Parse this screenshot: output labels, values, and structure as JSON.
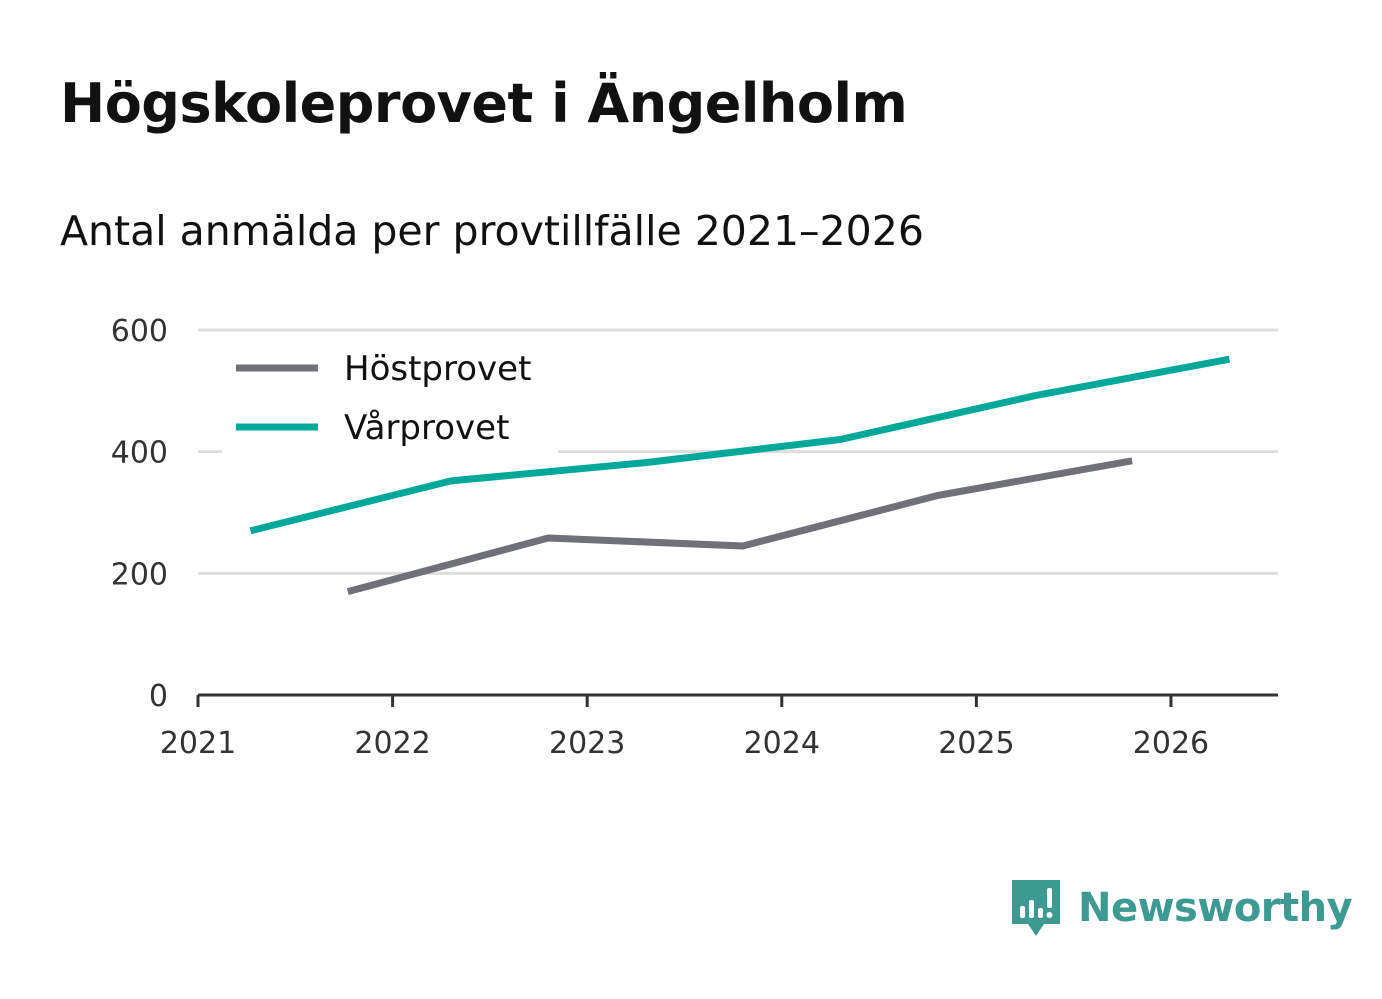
{
  "title": "Högskoleprovet i Ängelholm",
  "subtitle": "Antal anmälda per provtillfälle 2021–2026",
  "brand": {
    "name": "Newsworthy",
    "icon": "newsworthy-logo-icon",
    "color": "#3d9a92"
  },
  "chart_data": {
    "type": "line",
    "title": "Högskoleprovet i Ängelholm",
    "subtitle": "Antal anmälda per provtillfälle 2021–2026",
    "xlabel": "",
    "ylabel": "",
    "xlim": [
      2021,
      2026.55
    ],
    "ylim": [
      0,
      600
    ],
    "x_ticks": [
      "2021",
      "2022",
      "2023",
      "2024",
      "2025",
      "2026"
    ],
    "y_ticks": [
      "0",
      "200",
      "400",
      "600"
    ],
    "grid": true,
    "legend_position": "top-left",
    "series": [
      {
        "name": "Höstprovet",
        "color": "#707078",
        "points": [
          {
            "x": 2021.77,
            "y": 170
          },
          {
            "x": 2022.8,
            "y": 258
          },
          {
            "x": 2023.8,
            "y": 245
          },
          {
            "x": 2024.8,
            "y": 328
          },
          {
            "x": 2025.8,
            "y": 385
          }
        ]
      },
      {
        "name": "Vårprovet",
        "color": "#00a89a",
        "points": [
          {
            "x": 2021.27,
            "y": 270
          },
          {
            "x": 2022.3,
            "y": 352
          },
          {
            "x": 2023.3,
            "y": 382
          },
          {
            "x": 2024.3,
            "y": 420
          },
          {
            "x": 2025.3,
            "y": 492
          },
          {
            "x": 2026.3,
            "y": 552
          }
        ]
      }
    ]
  }
}
